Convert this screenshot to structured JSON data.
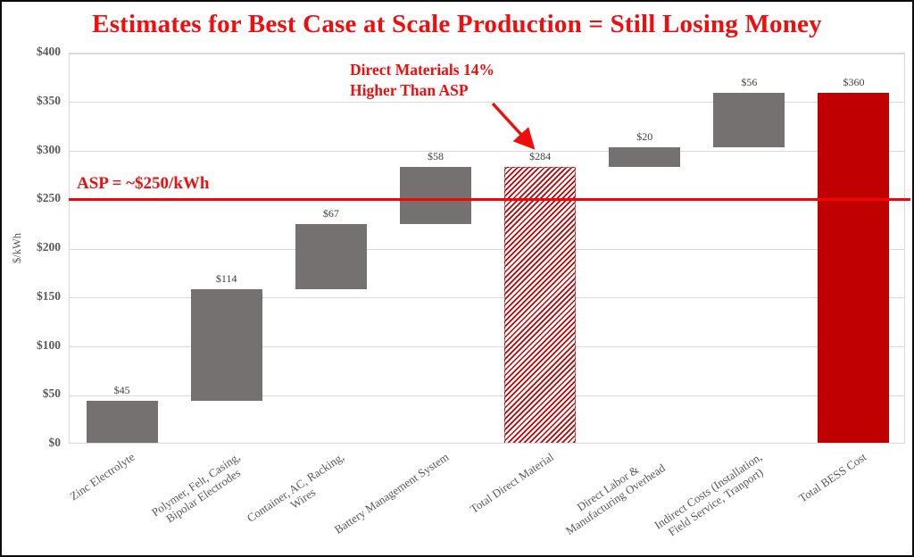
{
  "chart_data": {
    "type": "waterfall",
    "title": "Estimates for Best Case at Scale Production = Still Losing Money",
    "ylabel": "$/kWh",
    "ylim": [
      0,
      400
    ],
    "grid": "horizontal",
    "legend": "none",
    "yticks": [
      {
        "label": "$0",
        "value": 0
      },
      {
        "label": "$50",
        "value": 50
      },
      {
        "label": "$100",
        "value": 100
      },
      {
        "label": "$150",
        "value": 150
      },
      {
        "label": "$200",
        "value": 200
      },
      {
        "label": "$250",
        "value": 250
      },
      {
        "label": "$300",
        "value": 300
      },
      {
        "label": "$350",
        "value": 350
      },
      {
        "label": "$400",
        "value": 400
      }
    ],
    "bars": [
      {
        "category_lines": [
          "Zinc Electrolyte"
        ],
        "value_label": "$45",
        "value": 45,
        "start": 0,
        "end": 45,
        "style": "gray"
      },
      {
        "category_lines": [
          "Polymer, Felt, Casing,",
          "Bipolar Electrodes"
        ],
        "value_label": "$114",
        "value": 114,
        "start": 45,
        "end": 159,
        "style": "gray"
      },
      {
        "category_lines": [
          "Container, AC, Racking,",
          "Wires"
        ],
        "value_label": "$67",
        "value": 67,
        "start": 159,
        "end": 226,
        "style": "gray"
      },
      {
        "category_lines": [
          "Battery Management System"
        ],
        "value_label": "$58",
        "value": 58,
        "start": 226,
        "end": 284,
        "style": "gray"
      },
      {
        "category_lines": [
          "Total Direct Material"
        ],
        "value_label": "$284",
        "value": 284,
        "start": 0,
        "end": 284,
        "style": "hatched-red"
      },
      {
        "category_lines": [
          "Direct Labor &",
          "Manufacturing Overhead"
        ],
        "value_label": "$20",
        "value": 20,
        "start": 284,
        "end": 304,
        "style": "gray"
      },
      {
        "category_lines": [
          "Indirect Costs (Installation,",
          "Field Service, Tranport)"
        ],
        "value_label": "$56",
        "value": 56,
        "start": 304,
        "end": 360,
        "style": "gray"
      },
      {
        "category_lines": [
          "Total BESS Cost"
        ],
        "value_label": "$360",
        "value": 360,
        "start": 0,
        "end": 360,
        "style": "solid-red"
      }
    ],
    "reference_line": {
      "value": 250,
      "label": "ASP = ~$250/kWh"
    },
    "annotation": {
      "lines": [
        "Direct Materials 14%",
        "Higher Than ASP"
      ],
      "arrow_target": "Total Direct Material"
    },
    "colors": {
      "accent_text_red": "#f20d0d",
      "line_red": "#ff0000",
      "total_red": "#c00000",
      "bar_gray": "#767171",
      "gridline": "#d9d9d9",
      "axis_text": "#595959",
      "value_text": "#404040"
    }
  }
}
